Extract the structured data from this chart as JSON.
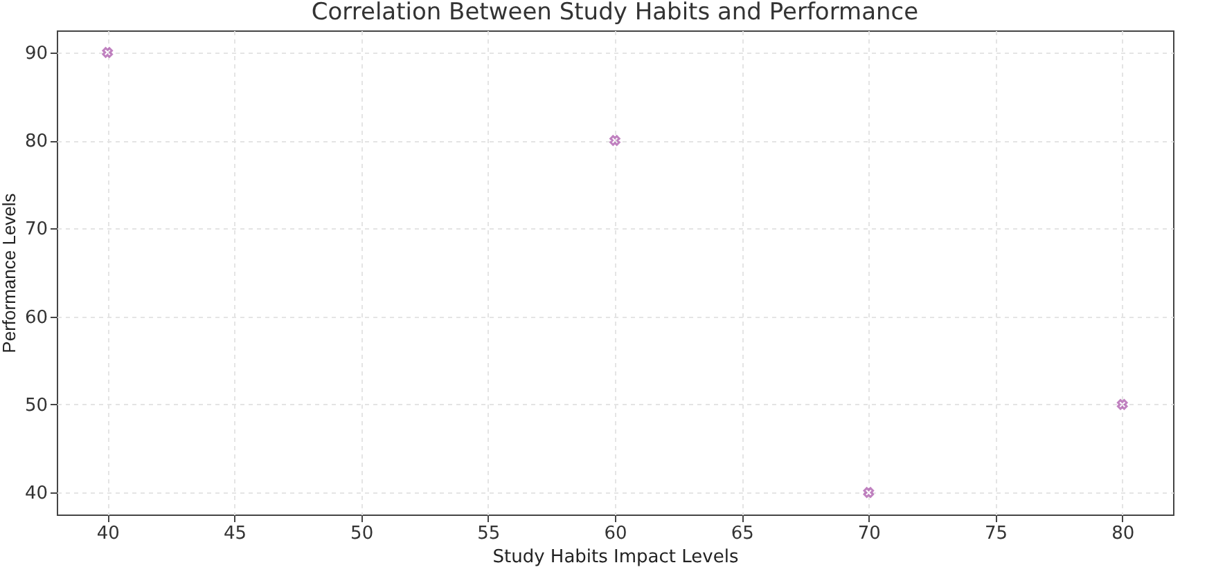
{
  "chart_data": {
    "type": "scatter",
    "title": "Correlation Between Study Habits and Performance",
    "xlabel": "Study Habits Impact Levels",
    "ylabel": "Performance Levels",
    "x": [
      40,
      60,
      70,
      80
    ],
    "series": [
      {
        "color": "#a64ca6",
        "values": [
          90,
          80,
          40,
          50
        ]
      }
    ],
    "xlim": [
      38,
      82
    ],
    "xticks": [
      40,
      45,
      50,
      55,
      60,
      65,
      70,
      75,
      80
    ],
    "ylim": [
      37.5,
      92.5
    ],
    "yticks": [
      40,
      50,
      60,
      70,
      80,
      90
    ],
    "grid": true,
    "marker": "cross"
  }
}
